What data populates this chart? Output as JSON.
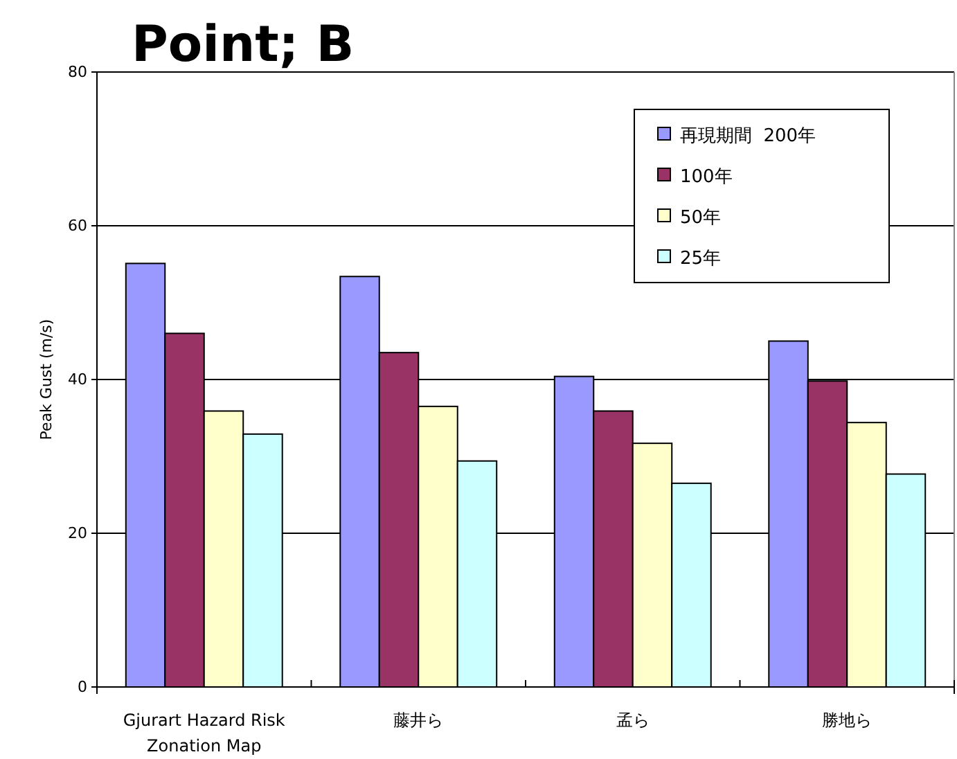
{
  "chart_data": {
    "type": "bar",
    "title": "Point; B",
    "ylabel": "Peak Gust (m/s)",
    "categories": [
      "Gjurart Hazard　Risk Zonation Map",
      "藤井ら",
      "孟ら",
      "勝地ら"
    ],
    "series": [
      {
        "name": "再現期間  200年",
        "color": "#9999ff",
        "values": [
          55.1,
          53.4,
          40.4,
          45.0
        ]
      },
      {
        "name": "100年",
        "color": "#993366",
        "values": [
          46.0,
          43.5,
          35.9,
          39.8
        ]
      },
      {
        "name": "50年",
        "color": "#ffffcc",
        "values": [
          35.9,
          36.5,
          31.7,
          34.4
        ]
      },
      {
        "name": "25年",
        "color": "#ccffff",
        "values": [
          32.9,
          29.4,
          26.5,
          27.7
        ]
      }
    ],
    "ylim": [
      0,
      80
    ],
    "yticks": [
      0,
      20,
      40,
      60,
      80
    ],
    "grid": "y",
    "legend": "top right"
  }
}
